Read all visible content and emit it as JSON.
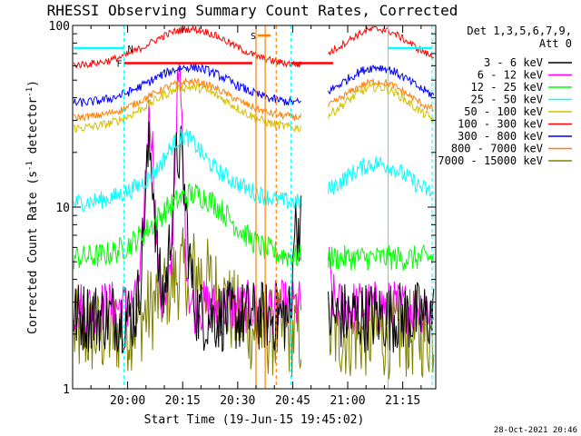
{
  "chart_data": {
    "type": "line",
    "title": "RHESSI Observing Summary Count Rates, Corrected",
    "xlabel": "Start Time (19-Jun-15 19:45:02)",
    "ylabel_main": "Corrected Count Rate (s",
    "ylabel_sup1": "-1",
    "ylabel_mid": " detector",
    "ylabel_sup2": "-1",
    "ylabel_end": ")",
    "footer": "28-Oct-2021 20:46",
    "y_scale": "log",
    "ylim": [
      1,
      100
    ],
    "xlim_minutes": [
      0,
      99
    ],
    "x_ticks": [
      {
        "m": 15,
        "label": "20:00"
      },
      {
        "m": 30,
        "label": "20:15"
      },
      {
        "m": 45,
        "label": "20:30"
      },
      {
        "m": 60,
        "label": "20:45"
      },
      {
        "m": 75,
        "label": "21:00"
      },
      {
        "m": 90,
        "label": "21:15"
      }
    ],
    "y_tick_labels": [
      {
        "v": 100,
        "label": "100"
      },
      {
        "v": 10,
        "label": "10"
      },
      {
        "v": 1,
        "label": "1"
      }
    ],
    "legend_header": [
      "Det 1,3,5,6,7,9,",
      "Att 0"
    ],
    "legend_placement": "right",
    "series": [
      {
        "name": "3 - 6 keV",
        "color": "#000000"
      },
      {
        "name": "6 - 12 keV",
        "color": "#ff00ff"
      },
      {
        "name": "12 - 25 keV",
        "color": "#00ff00"
      },
      {
        "name": "25 - 50 keV",
        "color": "#00ffff"
      },
      {
        "name": "50 - 100 keV",
        "color": "#d4c000"
      },
      {
        "name": "100 - 300 keV",
        "color": "#ff0000"
      },
      {
        "name": "300 - 800 keV",
        "color": "#0000ff"
      },
      {
        "name": "800 - 7000 keV",
        "color": "#ff8000"
      },
      {
        "name": "7000 - 15000 keV",
        "color": "#808000"
      }
    ],
    "flags": [
      {
        "label": "N",
        "color": "#00ffff"
      },
      {
        "label": "F",
        "color": "#ff0000"
      },
      {
        "label": "S",
        "color": "#ff8000"
      }
    ]
  }
}
